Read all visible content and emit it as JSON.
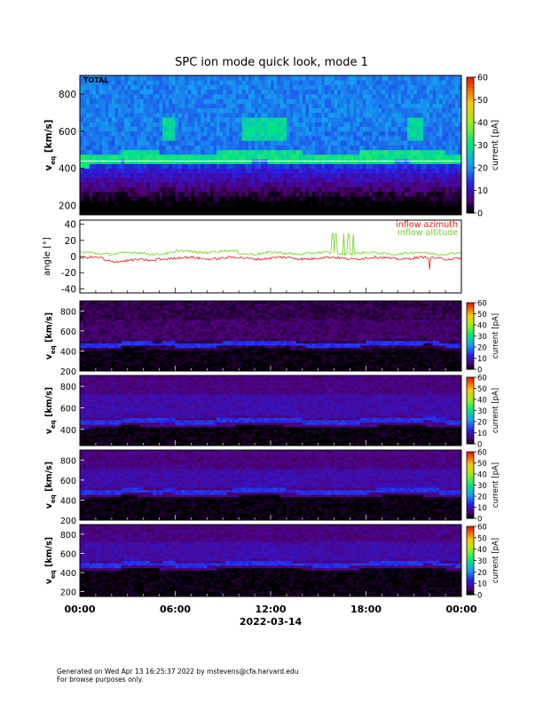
{
  "chart_data": {
    "title": "SPC ion mode quick look, mode 1",
    "x": {
      "tick_labels": [
        "00:00",
        "06:00",
        "12:00",
        "18:00",
        "00:00"
      ],
      "tick_hours": [
        0,
        6,
        12,
        18,
        24
      ],
      "range_hours": [
        0,
        24
      ],
      "xlabel": "2022-03-14"
    },
    "panels": [
      {
        "type": "heatmap",
        "label": "TOTAL",
        "ylabel_main": "v",
        "ylabel_sub": "eq",
        "ylabel_unit": "[km/s]",
        "ylim": [
          150,
          900
        ],
        "yticks": [
          200,
          400,
          600,
          800
        ],
        "colorbar": {
          "label": "current [pA]",
          "range": [
            0,
            60
          ],
          "ticks": [
            0,
            10,
            20,
            30,
            40,
            50,
            60
          ]
        },
        "band_velocity": 460,
        "reference_line": 440,
        "intensity": "bright"
      },
      {
        "type": "line",
        "ylabel": "angle [°]",
        "ylim": [
          -45,
          45
        ],
        "yticks": [
          -40,
          -20,
          0,
          20,
          40
        ],
        "series": [
          {
            "name": "inflow azimuth",
            "color": "#e02020",
            "mean": -2
          },
          {
            "name": "inflow altitude",
            "color": "#6ed41c",
            "mean": 4
          }
        ],
        "spikes_hours": [
          15.9,
          16.1,
          16.6,
          16.9,
          17.2
        ]
      },
      {
        "type": "heatmap",
        "ylabel_main": "v",
        "ylabel_sub": "eq",
        "ylabel_unit": "[km/s]",
        "ylim": [
          200,
          900
        ],
        "yticks": [
          200,
          400,
          600,
          800
        ],
        "colorbar": {
          "label": "current [pA]",
          "range": [
            0,
            60
          ],
          "ticks": [
            0,
            10,
            20,
            30,
            40,
            50,
            60
          ]
        },
        "band_velocity": 470,
        "intensity": "dim"
      },
      {
        "type": "heatmap",
        "ylabel_main": "v",
        "ylabel_sub": "eq",
        "ylabel_unit": "[km/s]",
        "ylim": [
          250,
          900
        ],
        "yticks": [
          400,
          600,
          800
        ],
        "colorbar": {
          "label": "current [pA]",
          "range": [
            0,
            60
          ],
          "ticks": [
            0,
            10,
            20,
            30,
            40,
            50,
            60
          ]
        },
        "band_velocity": 480,
        "intensity": "medium"
      },
      {
        "type": "heatmap",
        "ylabel_main": "v",
        "ylabel_sub": "eq",
        "ylabel_unit": "[km/s]",
        "ylim": [
          200,
          900
        ],
        "yticks": [
          200,
          400,
          600,
          800
        ],
        "colorbar": {
          "label": "current [pA]",
          "range": [
            0,
            60
          ],
          "ticks": [
            0,
            10,
            20,
            30,
            40,
            50,
            60
          ]
        },
        "band_velocity": 490,
        "intensity": "medium"
      },
      {
        "type": "heatmap",
        "ylabel_main": "v",
        "ylabel_sub": "eq",
        "ylabel_unit": "[km/s]",
        "ylim": [
          150,
          900
        ],
        "yticks": [
          200,
          400,
          600,
          800
        ],
        "colorbar": {
          "label": "current [pA]",
          "range": [
            0,
            60
          ],
          "ticks": [
            0,
            10,
            20,
            30,
            40,
            50,
            60
          ]
        },
        "band_velocity": 490,
        "intensity": "medium"
      }
    ]
  },
  "footer": {
    "line1": "Generated on Wed Apr 13 16:25:37 2022 by mstevens@cfa.harvard.edu",
    "line2": "For browse purposes only."
  }
}
